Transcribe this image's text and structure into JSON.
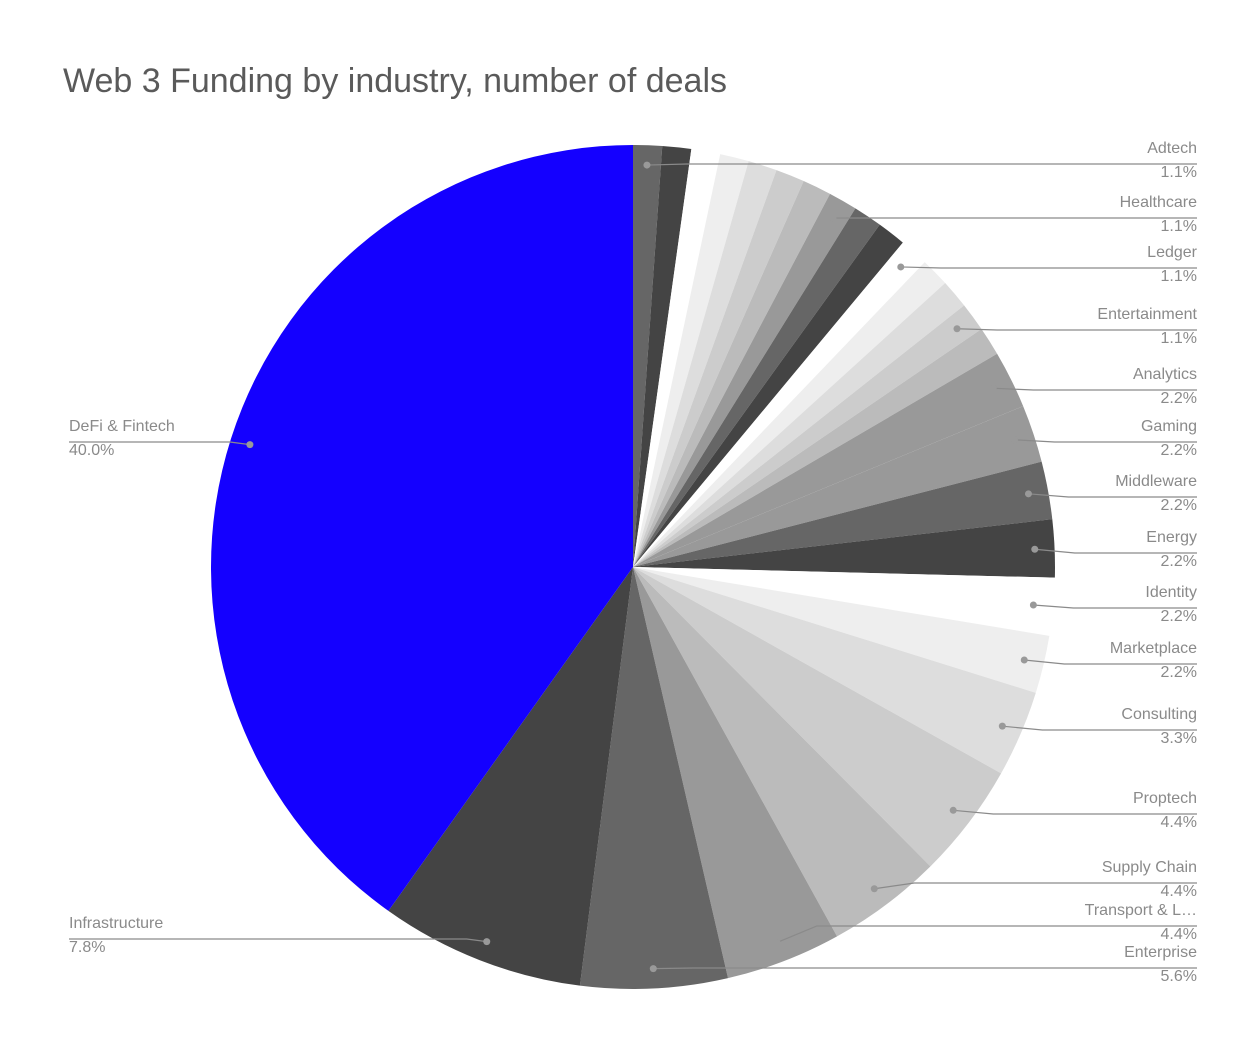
{
  "chart_data": {
    "type": "pie",
    "title": "Web 3 Funding by industry, number of deals",
    "categories": [
      "Adtech",
      null,
      null,
      null,
      null,
      null,
      null,
      "Healthcare",
      null,
      null,
      "Ledger",
      null,
      null,
      "Entertainment",
      null,
      "Analytics",
      "Gaming",
      "Middleware",
      "Energy",
      "Identity",
      "Marketplace",
      "Consulting",
      "Proptech",
      "Supply Chain",
      "Transport & L…",
      "Enterprise",
      "Infrastructure",
      "DeFi & Fintech"
    ],
    "values": [
      1.1,
      1.1,
      1.1,
      1.1,
      1.1,
      1.1,
      1.1,
      1.1,
      1.1,
      1.1,
      1.1,
      1.1,
      1.1,
      1.1,
      1.1,
      2.2,
      2.2,
      2.2,
      2.2,
      2.2,
      2.2,
      3.3,
      4.4,
      4.4,
      4.4,
      5.6,
      7.8,
      40.0
    ],
    "value_labels": [
      "1.1%",
      null,
      null,
      null,
      null,
      null,
      null,
      "1.1%",
      null,
      null,
      "1.1%",
      null,
      null,
      "1.1%",
      null,
      "2.2%",
      "2.2%",
      "2.2%",
      "2.2%",
      "2.2%",
      "2.2%",
      "3.3%",
      "4.4%",
      "4.4%",
      "4.4%",
      "5.6%",
      "7.8%",
      "40.0%"
    ],
    "colors": [
      "#666666",
      "#444444",
      "#ffffff",
      "#eeeeee",
      "#dddddd",
      "#cccccc",
      "#bbbbbb",
      "#999999",
      "#666666",
      "#444444",
      "#ffffff",
      "#eeeeee",
      "#dddddd",
      "#cccccc",
      "#bbbbbb",
      "#999999",
      "#999999",
      "#666666",
      "#444444",
      "#ffffff",
      "#eeeeee",
      "#dddddd",
      "#cccccc",
      "#bbbbbb",
      "#999999",
      "#666666",
      "#444444",
      "#1400ff"
    ]
  }
}
